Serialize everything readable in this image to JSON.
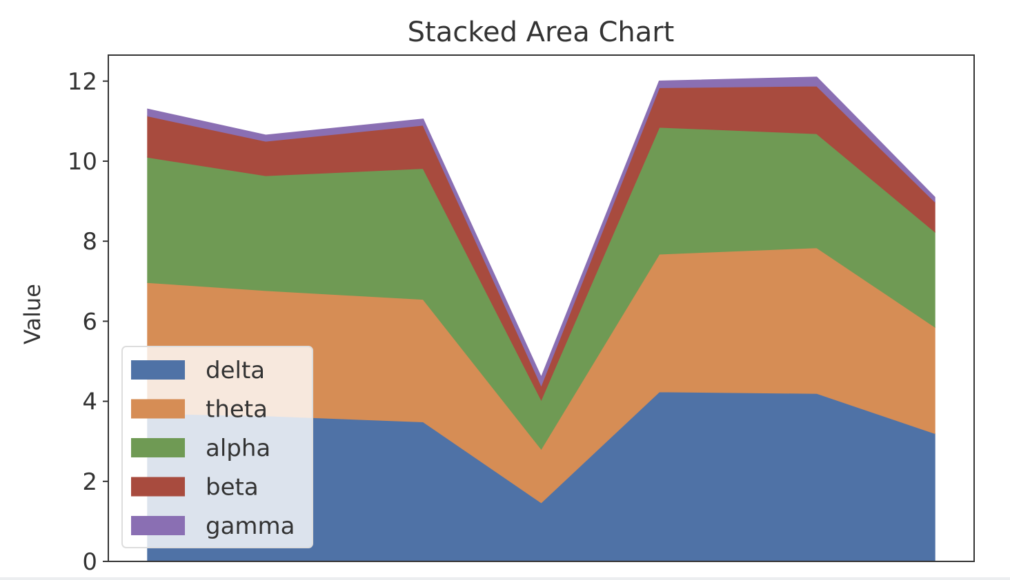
{
  "chart_data": {
    "type": "area",
    "stacked": true,
    "title": "Stacked Area Chart",
    "xlabel": "",
    "ylabel": "Value",
    "x": [
      0,
      3,
      7,
      10,
      13,
      17,
      20
    ],
    "xlim": [
      -1,
      21
    ],
    "ylim": [
      0,
      12.65
    ],
    "yticks": [
      0,
      2,
      4,
      6,
      8,
      10,
      12
    ],
    "grid": false,
    "legend_position": "lower-left",
    "series": [
      {
        "name": "delta",
        "color": "#4f72a6",
        "values": [
          3.7,
          3.64,
          3.49,
          1.47,
          4.24,
          4.2,
          3.2
        ]
      },
      {
        "name": "theta",
        "color": "#d68d55",
        "values": [
          3.27,
          3.13,
          3.06,
          1.34,
          3.44,
          3.64,
          2.66
        ]
      },
      {
        "name": "alpha",
        "color": "#6f9a54",
        "values": [
          3.13,
          2.87,
          3.27,
          1.23,
          3.17,
          2.85,
          2.38
        ]
      },
      {
        "name": "beta",
        "color": "#a84b3e",
        "values": [
          1.03,
          0.86,
          1.08,
          0.36,
          0.99,
          1.19,
          0.75
        ]
      },
      {
        "name": "gamma",
        "color": "#8a6fb3",
        "values": [
          0.17,
          0.15,
          0.15,
          0.2,
          0.16,
          0.22,
          0.11
        ]
      }
    ]
  }
}
